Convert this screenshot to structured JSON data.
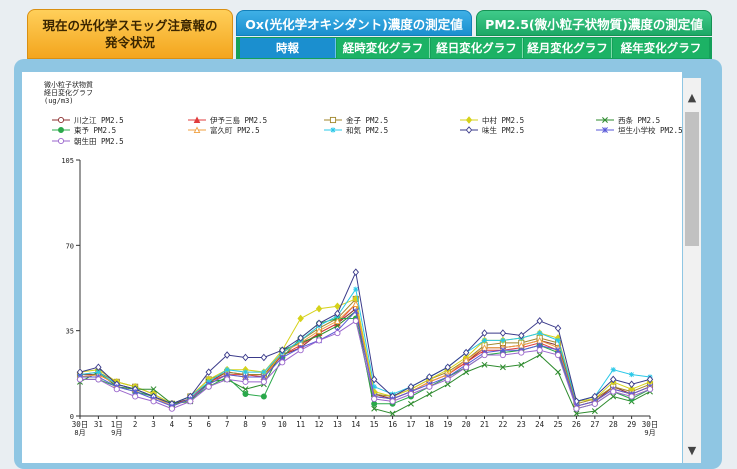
{
  "tabs": {
    "smog": {
      "line1": "現在の光化学スモッグ注意報の",
      "line2": "発令状況"
    },
    "ox": "Ox(光化学オキシダント)濃度の測定値",
    "pm": "PM2.5(微小粒子状物質)濃度の測定値"
  },
  "subnav": [
    "時報",
    "経時変化グラフ",
    "経日変化グラフ",
    "経月変化グラフ",
    "経年変化グラフ"
  ],
  "chart_data": {
    "type": "line",
    "title_lines": [
      "微小粒子状物質",
      "経日変化グラフ",
      "(ug/m3)"
    ],
    "categories": [
      "30",
      "31",
      "1",
      "2",
      "3",
      "4",
      "5",
      "6",
      "7",
      "8",
      "9",
      "10",
      "11",
      "12",
      "13",
      "14",
      "15",
      "16",
      "17",
      "18",
      "19",
      "20",
      "21",
      "22",
      "23",
      "24",
      "25",
      "26",
      "27",
      "28",
      "29",
      "30"
    ],
    "x_month_labels": [
      {
        "index": 0,
        "text": "8月"
      },
      {
        "index": 2,
        "text": "9月"
      },
      {
        "index": 31,
        "text": "9月"
      }
    ],
    "x_day_suffix": {
      "first": "日",
      "second_month_start": "日",
      "last": "日"
    },
    "y_ticks": [
      0,
      35,
      70,
      105
    ],
    "ylim": [
      0,
      105
    ],
    "series": [
      {
        "name": "川之江 PM2.5",
        "color": "#8b2e2e",
        "marker": "circle",
        "values": [
          17,
          17,
          13,
          11,
          8,
          5,
          7,
          14,
          18,
          17,
          17,
          25,
          28,
          34,
          38,
          44,
          9,
          7,
          10,
          14,
          17,
          22,
          28,
          28,
          29,
          31,
          29,
          4,
          6,
          12,
          9,
          12
        ]
      },
      {
        "name": "伊予三島 PM2.5",
        "color": "#e03c3c",
        "marker": "triangle",
        "values": [
          16,
          17,
          13,
          11,
          8,
          4,
          7,
          14,
          17,
          17,
          16,
          25,
          29,
          34,
          38,
          46,
          8,
          7,
          10,
          14,
          17,
          22,
          27,
          27,
          28,
          30,
          27,
          4,
          6,
          11,
          9,
          12
        ]
      },
      {
        "name": "金子 PM2.5",
        "color": "#a0862a",
        "marker": "square",
        "values": [
          17,
          18,
          14,
          12,
          9,
          5,
          8,
          15,
          18,
          17,
          17,
          26,
          31,
          36,
          40,
          48,
          9,
          8,
          11,
          15,
          18,
          23,
          29,
          30,
          30,
          32,
          30,
          5,
          7,
          12,
          10,
          13
        ]
      },
      {
        "name": "中村 PM2.5",
        "color": "#d6d21a",
        "marker": "diamond",
        "values": [
          18,
          19,
          14,
          12,
          9,
          5,
          8,
          15,
          19,
          19,
          18,
          27,
          40,
          44,
          45,
          48,
          10,
          8,
          11,
          15,
          19,
          24,
          31,
          31,
          32,
          34,
          32,
          6,
          7,
          14,
          11,
          14
        ]
      },
      {
        "name": "西条 PM2.5",
        "color": "#2e8b2e",
        "marker": "x",
        "values": [
          14,
          18,
          12,
          11,
          11,
          5,
          6,
          14,
          15,
          11,
          13,
          27,
          30,
          33,
          37,
          43,
          3,
          1,
          5,
          9,
          13,
          18,
          21,
          20,
          21,
          25,
          18,
          1,
          2,
          8,
          6,
          10
        ]
      },
      {
        "name": "東予 PM2.5",
        "color": "#2aa84a",
        "marker": "circlefill",
        "values": [
          15,
          15,
          12,
          10,
          8,
          4,
          7,
          12,
          16,
          9,
          8,
          24,
          32,
          38,
          40,
          40,
          5,
          5,
          8,
          12,
          16,
          20,
          25,
          26,
          27,
          29,
          26,
          3,
          5,
          10,
          7,
          11
        ]
      },
      {
        "name": "富久町 PM2.5",
        "color": "#f0a040",
        "marker": "triangleopen",
        "values": [
          16,
          17,
          13,
          11,
          8,
          4,
          7,
          13,
          17,
          16,
          16,
          26,
          30,
          35,
          39,
          46,
          8,
          7,
          10,
          14,
          17,
          23,
          28,
          28,
          29,
          31,
          28,
          4,
          6,
          11,
          9,
          12
        ]
      },
      {
        "name": "和気 PM2.5",
        "color": "#2ac8e8",
        "marker": "star",
        "values": [
          17,
          18,
          13,
          11,
          8,
          5,
          8,
          14,
          19,
          18,
          18,
          26,
          31,
          37,
          41,
          52,
          12,
          9,
          12,
          16,
          20,
          26,
          31,
          31,
          32,
          34,
          31,
          6,
          8,
          19,
          17,
          16
        ]
      },
      {
        "name": "味生 PM2.5",
        "color": "#3a3a8a",
        "marker": "diamondopen",
        "values": [
          18,
          20,
          13,
          11,
          8,
          5,
          8,
          18,
          25,
          24,
          24,
          27,
          32,
          38,
          42,
          59,
          15,
          8,
          12,
          16,
          20,
          26,
          34,
          34,
          33,
          39,
          36,
          6,
          8,
          15,
          13,
          15
        ]
      },
      {
        "name": "垣生小学校 PM2.5",
        "color": "#5a5ad8",
        "marker": "xstar",
        "values": [
          16,
          16,
          12,
          10,
          7,
          4,
          7,
          13,
          17,
          16,
          16,
          24,
          28,
          31,
          35,
          43,
          8,
          7,
          10,
          13,
          16,
          21,
          26,
          27,
          27,
          29,
          27,
          4,
          6,
          11,
          9,
          12
        ]
      },
      {
        "name": "朝生田 PM2.5",
        "color": "#9a66cc",
        "marker": "circleopen",
        "values": [
          15,
          15,
          11,
          8,
          6,
          3,
          6,
          12,
          15,
          14,
          14,
          22,
          27,
          31,
          34,
          39,
          7,
          6,
          9,
          12,
          15,
          20,
          25,
          25,
          26,
          27,
          25,
          3,
          5,
          10,
          8,
          11
        ]
      }
    ]
  }
}
